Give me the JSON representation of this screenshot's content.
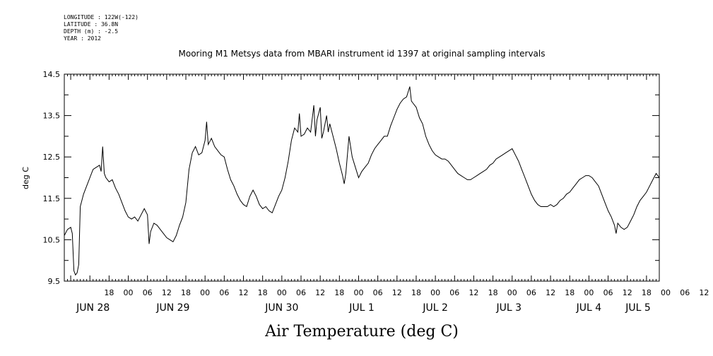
{
  "header": {
    "longitude": "LONGITUDE : 122W(-122)",
    "latitude": "LATITUDE : 36.8N",
    "depth": "DEPTH (m) : -2.5",
    "year": "YEAR : 2012"
  },
  "chart_data": {
    "type": "line",
    "title": "Mooring M1 Metsys data from MBARI instrument id 1397 at original sampling intervals",
    "xlabel": "Air Temperature (deg C)",
    "ylabel": "deg C",
    "ylim": [
      9.5,
      14.5
    ],
    "yticks": [
      "9.5",
      "10.5",
      "11.5",
      "12.5",
      "13.5",
      "14.5"
    ],
    "xlim_hours": [
      -10,
      176
    ],
    "x_axis_start": "2012-06-27T14:00",
    "hour_tick_labels": [
      "18",
      "00",
      "06",
      "12",
      "18",
      "00",
      "06",
      "12",
      "18",
      "00",
      "06",
      "12",
      "18",
      "00",
      "06",
      "12",
      "18",
      "00",
      "06",
      "12",
      "18",
      "00",
      "06",
      "12",
      "18",
      "00",
      "06",
      "12",
      "18",
      "00",
      "06",
      "12"
    ],
    "date_labels": [
      "JUN 28",
      "JUN 29",
      "JUN 30",
      "JUL  1",
      "JUL  2",
      "JUL  3",
      "JUL  4",
      "JUL  5"
    ],
    "grid": false,
    "series": [
      {
        "points": [
          [
            -10,
            10.6
          ],
          [
            -9,
            10.75
          ],
          [
            -8,
            10.8
          ],
          [
            -7.5,
            10.65
          ],
          [
            -7,
            9.75
          ],
          [
            -6.5,
            9.65
          ],
          [
            -6,
            9.7
          ],
          [
            -5.5,
            9.9
          ],
          [
            -5,
            11.3
          ],
          [
            -4,
            11.6
          ],
          [
            -3,
            11.8
          ],
          [
            -2,
            12.0
          ],
          [
            -1,
            12.2
          ],
          [
            0,
            12.25
          ],
          [
            1,
            12.3
          ],
          [
            1.5,
            12.15
          ],
          [
            2,
            12.75
          ],
          [
            2.5,
            12.1
          ],
          [
            3,
            12.0
          ],
          [
            4,
            11.9
          ],
          [
            5,
            11.95
          ],
          [
            6,
            11.75
          ],
          [
            7,
            11.6
          ],
          [
            8,
            11.4
          ],
          [
            9,
            11.2
          ],
          [
            10,
            11.05
          ],
          [
            11,
            11.0
          ],
          [
            12,
            11.05
          ],
          [
            13,
            10.95
          ],
          [
            14,
            11.1
          ],
          [
            15,
            11.25
          ],
          [
            16,
            11.1
          ],
          [
            16.5,
            10.4
          ],
          [
            17,
            10.7
          ],
          [
            18,
            10.9
          ],
          [
            19,
            10.85
          ],
          [
            20,
            10.75
          ],
          [
            21,
            10.65
          ],
          [
            22,
            10.55
          ],
          [
            23,
            10.5
          ],
          [
            24,
            10.45
          ],
          [
            25,
            10.6
          ],
          [
            26,
            10.85
          ],
          [
            27,
            11.05
          ],
          [
            28,
            11.4
          ],
          [
            29,
            12.2
          ],
          [
            30,
            12.6
          ],
          [
            31,
            12.75
          ],
          [
            32,
            12.55
          ],
          [
            33,
            12.6
          ],
          [
            34,
            12.9
          ],
          [
            34.5,
            13.35
          ],
          [
            35,
            12.8
          ],
          [
            36,
            12.95
          ],
          [
            37,
            12.75
          ],
          [
            38,
            12.65
          ],
          [
            39,
            12.55
          ],
          [
            40,
            12.5
          ],
          [
            41,
            12.2
          ],
          [
            42,
            11.95
          ],
          [
            43,
            11.8
          ],
          [
            44,
            11.6
          ],
          [
            45,
            11.45
          ],
          [
            46,
            11.35
          ],
          [
            47,
            11.3
          ],
          [
            48,
            11.55
          ],
          [
            49,
            11.7
          ],
          [
            50,
            11.55
          ],
          [
            51,
            11.35
          ],
          [
            52,
            11.25
          ],
          [
            53,
            11.3
          ],
          [
            54,
            11.2
          ],
          [
            55,
            11.15
          ],
          [
            56,
            11.35
          ],
          [
            57,
            11.55
          ],
          [
            58,
            11.7
          ],
          [
            59,
            12.0
          ],
          [
            60,
            12.4
          ],
          [
            61,
            12.9
          ],
          [
            62,
            13.2
          ],
          [
            63,
            13.1
          ],
          [
            63.5,
            13.55
          ],
          [
            64,
            13.0
          ],
          [
            65,
            13.05
          ],
          [
            66,
            13.2
          ],
          [
            67,
            13.1
          ],
          [
            68,
            13.75
          ],
          [
            68.5,
            13.0
          ],
          [
            69,
            13.4
          ],
          [
            70,
            13.7
          ],
          [
            70.5,
            12.95
          ],
          [
            71,
            13.1
          ],
          [
            72,
            13.5
          ],
          [
            72.5,
            13.1
          ],
          [
            73,
            13.3
          ],
          [
            74,
            13.0
          ],
          [
            75,
            12.7
          ],
          [
            76,
            12.35
          ],
          [
            77,
            12.05
          ],
          [
            77.5,
            11.85
          ],
          [
            78,
            12.1
          ],
          [
            79,
            13.0
          ],
          [
            80,
            12.5
          ],
          [
            81,
            12.25
          ],
          [
            82,
            12.0
          ],
          [
            83,
            12.15
          ],
          [
            84,
            12.25
          ],
          [
            85,
            12.35
          ],
          [
            86,
            12.55
          ],
          [
            87,
            12.7
          ],
          [
            88,
            12.8
          ],
          [
            89,
            12.9
          ],
          [
            90,
            13.0
          ],
          [
            91,
            13.0
          ],
          [
            92,
            13.25
          ],
          [
            93,
            13.45
          ],
          [
            94,
            13.65
          ],
          [
            95,
            13.8
          ],
          [
            96,
            13.9
          ],
          [
            97,
            13.95
          ],
          [
            98,
            14.2
          ],
          [
            98.5,
            13.85
          ],
          [
            99,
            13.8
          ],
          [
            100,
            13.7
          ],
          [
            101,
            13.45
          ],
          [
            102,
            13.3
          ],
          [
            103,
            13.0
          ],
          [
            104,
            12.8
          ],
          [
            105,
            12.65
          ],
          [
            106,
            12.55
          ],
          [
            107,
            12.5
          ],
          [
            108,
            12.45
          ],
          [
            109,
            12.45
          ],
          [
            110,
            12.4
          ],
          [
            111,
            12.3
          ],
          [
            112,
            12.2
          ],
          [
            113,
            12.1
          ],
          [
            114,
            12.05
          ],
          [
            115,
            12.0
          ],
          [
            116,
            11.95
          ],
          [
            117,
            11.95
          ],
          [
            118,
            12.0
          ],
          [
            119,
            12.05
          ],
          [
            120,
            12.1
          ],
          [
            121,
            12.15
          ],
          [
            122,
            12.2
          ],
          [
            123,
            12.3
          ],
          [
            124,
            12.35
          ],
          [
            125,
            12.45
          ],
          [
            126,
            12.5
          ],
          [
            127,
            12.55
          ],
          [
            128,
            12.6
          ],
          [
            129,
            12.65
          ],
          [
            130,
            12.7
          ],
          [
            131,
            12.55
          ],
          [
            132,
            12.4
          ],
          [
            133,
            12.2
          ],
          [
            134,
            12.0
          ],
          [
            135,
            11.8
          ],
          [
            136,
            11.6
          ],
          [
            137,
            11.45
          ],
          [
            138,
            11.35
          ],
          [
            139,
            11.3
          ],
          [
            140,
            11.3
          ],
          [
            141,
            11.3
          ],
          [
            142,
            11.35
          ],
          [
            143,
            11.3
          ],
          [
            144,
            11.35
          ],
          [
            145,
            11.45
          ],
          [
            146,
            11.5
          ],
          [
            147,
            11.6
          ],
          [
            148,
            11.65
          ],
          [
            149,
            11.75
          ],
          [
            150,
            11.85
          ],
          [
            151,
            11.95
          ],
          [
            152,
            12.0
          ],
          [
            153,
            12.05
          ],
          [
            154,
            12.05
          ],
          [
            155,
            12.0
          ],
          [
            156,
            11.9
          ],
          [
            157,
            11.8
          ],
          [
            158,
            11.6
          ],
          [
            159,
            11.4
          ],
          [
            160,
            11.2
          ],
          [
            161,
            11.05
          ],
          [
            162,
            10.85
          ],
          [
            162.5,
            10.65
          ],
          [
            163,
            10.9
          ],
          [
            164,
            10.8
          ],
          [
            165,
            10.75
          ],
          [
            166,
            10.8
          ],
          [
            167,
            10.95
          ],
          [
            168,
            11.1
          ],
          [
            169,
            11.3
          ],
          [
            170,
            11.45
          ],
          [
            171,
            11.55
          ],
          [
            172,
            11.65
          ],
          [
            173,
            11.8
          ],
          [
            174,
            11.95
          ],
          [
            175,
            12.1
          ],
          [
            176,
            12.0
          ]
        ]
      }
    ]
  }
}
